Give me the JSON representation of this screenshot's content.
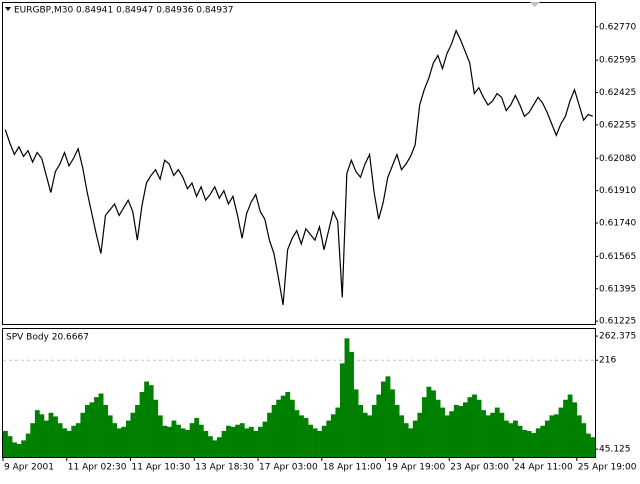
{
  "chart_data": [
    {
      "type": "line",
      "title": "EURGBP,M30  0.84941 0.84947 0.84936 0.84937",
      "color": "#000000",
      "ylim": [
        0.6121,
        0.62895
      ],
      "yticks": [
        {
          "value": 0.6277,
          "label": "0.62770"
        },
        0.62595,
        0.62425,
        0.62255,
        {
          "value": 0.6208,
          "label": "0.62080"
        },
        {
          "value": 0.6191,
          "label": "0.61910"
        },
        {
          "value": 0.6174,
          "label": "0.61740"
        },
        0.61565,
        0.61395,
        0.61225
      ],
      "values": [
        0.6223,
        0.6216,
        0.621,
        0.6214,
        0.6209,
        0.6212,
        0.6206,
        0.6211,
        0.6208,
        0.6199,
        0.619,
        0.6201,
        0.6205,
        0.6211,
        0.6204,
        0.6208,
        0.6213,
        0.6203,
        0.619,
        0.6179,
        0.6168,
        0.6158,
        0.6178,
        0.6181,
        0.6184,
        0.6178,
        0.6182,
        0.6186,
        0.618,
        0.6165,
        0.6183,
        0.6195,
        0.6199,
        0.6202,
        0.6197,
        0.6207,
        0.6205,
        0.6199,
        0.6202,
        0.6198,
        0.6192,
        0.6195,
        0.6188,
        0.6193,
        0.6186,
        0.6189,
        0.6193,
        0.6187,
        0.6191,
        0.6184,
        0.6188,
        0.6178,
        0.6166,
        0.6179,
        0.6185,
        0.6189,
        0.618,
        0.6176,
        0.6165,
        0.6158,
        0.6145,
        0.6131,
        0.616,
        0.6166,
        0.617,
        0.6163,
        0.6171,
        0.6168,
        0.6165,
        0.6172,
        0.616,
        0.617,
        0.618,
        0.6175,
        0.6135,
        0.62,
        0.6207,
        0.6201,
        0.6198,
        0.6205,
        0.621,
        0.619,
        0.6176,
        0.6185,
        0.6198,
        0.6204,
        0.621,
        0.6202,
        0.6205,
        0.6209,
        0.6215,
        0.6236,
        0.6244,
        0.625,
        0.6258,
        0.6262,
        0.6255,
        0.6263,
        0.6268,
        0.6275,
        0.627,
        0.6264,
        0.6258,
        0.6242,
        0.6245,
        0.624,
        0.6236,
        0.6238,
        0.6242,
        0.624,
        0.6233,
        0.6236,
        0.6241,
        0.6236,
        0.623,
        0.6232,
        0.6236,
        0.624,
        0.6237,
        0.6232,
        0.6226,
        0.622,
        0.6226,
        0.623,
        0.6238,
        0.6244,
        0.6236,
        0.6228,
        0.6231,
        0.623
      ]
    },
    {
      "type": "bar",
      "title": "SPV Body 20.6667",
      "color": "#008000",
      "ylim": [
        30,
        276
      ],
      "yticks": [
        262.375,
        216,
        45.125
      ],
      "level_lines": [
        216
      ],
      "categories": [
        "9 Apr 2001",
        null,
        null,
        null,
        null,
        null,
        null,
        null,
        null,
        null,
        null,
        null,
        null,
        null,
        "11 Apr 02:30",
        null,
        null,
        null,
        null,
        null,
        null,
        null,
        null,
        null,
        null,
        null,
        null,
        null,
        "11 Apr 10:30",
        null,
        null,
        null,
        null,
        null,
        null,
        null,
        null,
        null,
        null,
        null,
        null,
        null,
        "13 Apr 18:30",
        null,
        null,
        null,
        null,
        null,
        null,
        null,
        null,
        null,
        null,
        null,
        null,
        null,
        "17 Apr 03:00",
        null,
        null,
        null,
        null,
        null,
        null,
        null,
        null,
        null,
        null,
        null,
        null,
        null,
        "18 Apr 11:00",
        null,
        null,
        null,
        null,
        null,
        null,
        null,
        null,
        null,
        null,
        null,
        null,
        null,
        "19 Apr 19:00",
        null,
        null,
        null,
        null,
        null,
        null,
        null,
        null,
        null,
        null,
        null,
        null,
        null,
        "23 Apr 03:00",
        null,
        null,
        null,
        null,
        null,
        null,
        null,
        null,
        null,
        null,
        null,
        null,
        null,
        "24 Apr 11:00",
        null,
        null,
        null,
        null,
        null,
        null,
        null,
        null,
        null,
        null,
        null,
        null,
        null,
        "25 Apr 19:00",
        null,
        null,
        null
      ],
      "values": [
        80,
        70,
        58,
        55,
        62,
        75,
        95,
        120,
        112,
        100,
        115,
        108,
        95,
        85,
        80,
        90,
        95,
        115,
        130,
        135,
        145,
        152,
        130,
        110,
        95,
        85,
        88,
        100,
        115,
        130,
        155,
        175,
        168,
        140,
        110,
        90,
        88,
        100,
        92,
        85,
        82,
        95,
        105,
        92,
        80,
        70,
        62,
        68,
        80,
        90,
        88,
        92,
        95,
        85,
        88,
        80,
        88,
        98,
        115,
        130,
        140,
        148,
        155,
        140,
        120,
        110,
        105,
        92,
        85,
        80,
        90,
        100,
        112,
        125,
        210,
        258,
        232,
        160,
        130,
        115,
        110,
        130,
        150,
        175,
        185,
        160,
        130,
        110,
        95,
        85,
        100,
        115,
        145,
        165,
        158,
        140,
        125,
        110,
        118,
        130,
        128,
        135,
        145,
        150,
        140,
        120,
        110,
        115,
        125,
        115,
        100,
        95,
        100,
        90,
        82,
        80,
        76,
        85,
        90,
        100,
        110,
        112,
        125,
        140,
        150,
        135,
        110,
        95,
        75,
        68
      ]
    }
  ]
}
